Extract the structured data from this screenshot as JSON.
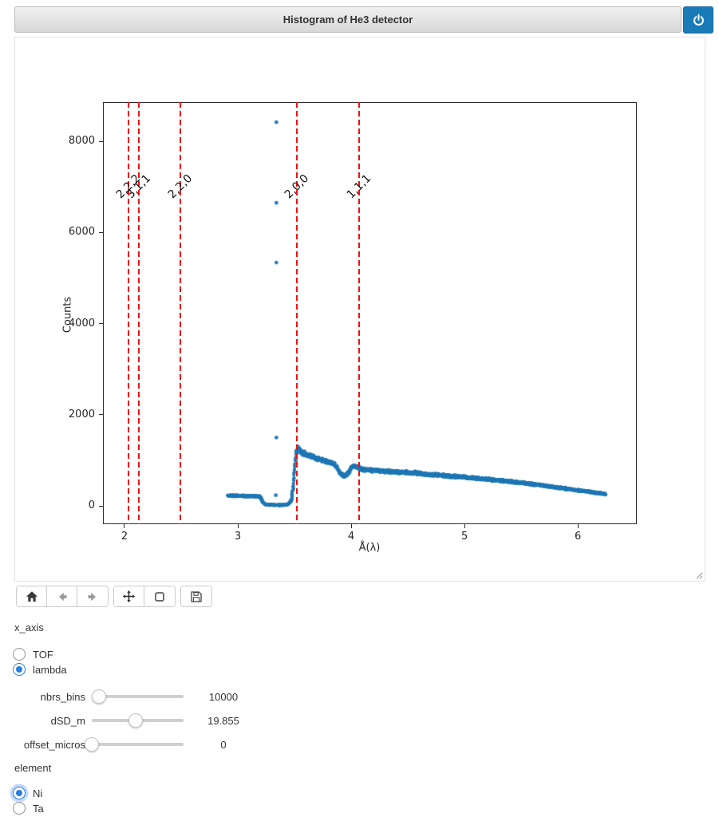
{
  "header": {
    "title": "Histogram of He3 detector",
    "power_icon": "power-icon"
  },
  "toolbar": {
    "buttons": [
      {
        "name": "home",
        "icon": "home-icon",
        "enabled": true
      },
      {
        "name": "back",
        "icon": "arrow-left-icon",
        "enabled": false
      },
      {
        "name": "forward",
        "icon": "arrow-right-icon",
        "enabled": false
      },
      {
        "name": "pan",
        "icon": "pan-arrows-icon",
        "enabled": true
      },
      {
        "name": "zoom",
        "icon": "zoom-rect-icon",
        "enabled": true
      },
      {
        "name": "save",
        "icon": "save-icon",
        "enabled": true
      }
    ]
  },
  "controls": {
    "x_axis": {
      "label": "x_axis",
      "options": [
        "TOF",
        "lambda"
      ],
      "selected": "lambda"
    },
    "sliders": [
      {
        "label": "nbrs_bins",
        "value": "10000",
        "position_pct": 7.6
      },
      {
        "label": "dSD_m",
        "value": "19.855",
        "position_pct": 47.8
      },
      {
        "label": "offset_micros",
        "value": "0",
        "position_pct": 0
      }
    ],
    "element": {
      "label": "element",
      "options": [
        "Ni",
        "Ta"
      ],
      "selected": "Ni"
    }
  },
  "chart_data": {
    "type": "scatter",
    "title": "",
    "xlabel": "Å(λ)",
    "ylabel": "Counts",
    "xlim": [
      1.81,
      6.52
    ],
    "ylim": [
      -400,
      8860
    ],
    "xticks": [
      2,
      3,
      4,
      5,
      6
    ],
    "yticks": [
      0,
      2000,
      4000,
      6000,
      8000
    ],
    "grid": false,
    "point_color": "#1f77b4",
    "vline_color": "#ee1111",
    "vline_style": "dashed",
    "bragg_lines": [
      {
        "label": "2,2,2",
        "x": 2.035
      },
      {
        "label": "3,1,1",
        "x": 2.125
      },
      {
        "label": "2,2,0",
        "x": 2.492
      },
      {
        "label": "2,0,0",
        "x": 3.524
      },
      {
        "label": "1,1,1",
        "x": 4.069
      }
    ],
    "label_y": 7000,
    "curve_x_range": [
      2.912,
      6.245
    ],
    "curve_anchors": [
      [
        2.912,
        230
      ],
      [
        2.96,
        226
      ],
      [
        3.01,
        222
      ],
      [
        3.06,
        218
      ],
      [
        3.11,
        215
      ],
      [
        3.16,
        212
      ],
      [
        3.19,
        206
      ],
      [
        3.205,
        170
      ],
      [
        3.22,
        90
      ],
      [
        3.235,
        45
      ],
      [
        3.26,
        28
      ],
      [
        3.31,
        22
      ],
      [
        3.36,
        20
      ],
      [
        3.41,
        24
      ],
      [
        3.445,
        38
      ],
      [
        3.47,
        110
      ],
      [
        3.488,
        380
      ],
      [
        3.502,
        820
      ],
      [
        3.515,
        1150
      ],
      [
        3.53,
        1260
      ],
      [
        3.555,
        1195
      ],
      [
        3.6,
        1130
      ],
      [
        3.65,
        1085
      ],
      [
        3.7,
        1040
      ],
      [
        3.75,
        1000
      ],
      [
        3.8,
        965
      ],
      [
        3.845,
        925
      ],
      [
        3.875,
        840
      ],
      [
        3.91,
        700
      ],
      [
        3.945,
        645
      ],
      [
        3.975,
        720
      ],
      [
        4.0,
        845
      ],
      [
        4.03,
        880
      ],
      [
        4.06,
        845
      ],
      [
        4.095,
        805
      ],
      [
        4.15,
        790
      ],
      [
        4.25,
        772
      ],
      [
        4.4,
        748
      ],
      [
        4.6,
        715
      ],
      [
        4.8,
        672
      ],
      [
        5.0,
        630
      ],
      [
        5.2,
        585
      ],
      [
        5.4,
        537
      ],
      [
        5.6,
        478
      ],
      [
        5.8,
        412
      ],
      [
        5.95,
        360
      ],
      [
        6.1,
        312
      ],
      [
        6.2,
        275
      ],
      [
        6.245,
        255
      ]
    ],
    "noise_base": 16,
    "noise_scale": 0.045,
    "outlier_points": [
      [
        3.34,
        8420
      ],
      [
        3.34,
        6650
      ],
      [
        3.34,
        5340
      ],
      [
        3.34,
        1500
      ],
      [
        3.335,
        235
      ]
    ]
  }
}
